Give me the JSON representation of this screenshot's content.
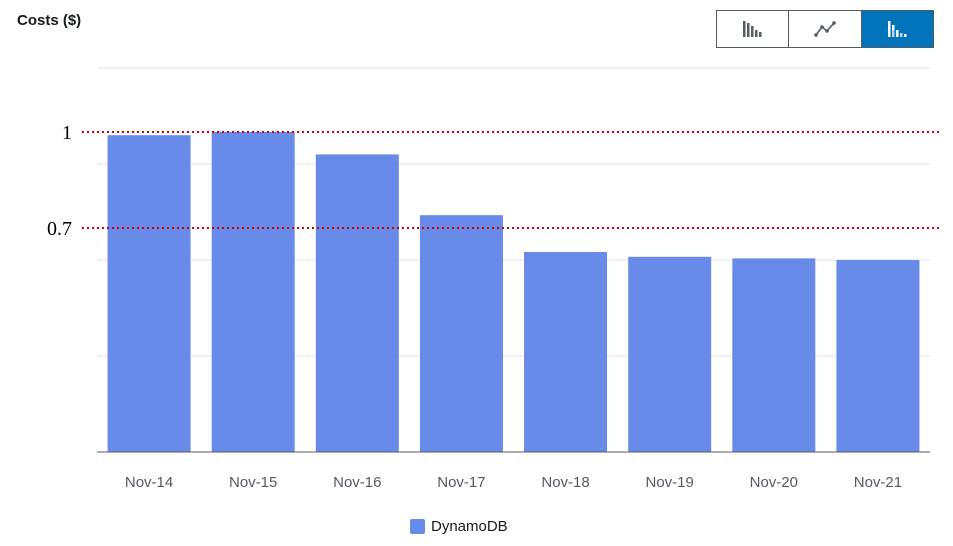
{
  "header": {
    "title": "Costs ($)"
  },
  "toolbar": {
    "buttons": [
      {
        "icon": "bar-chart-icon",
        "active": false
      },
      {
        "icon": "line-chart-icon",
        "active": false
      },
      {
        "icon": "stacked-bar-chart-icon",
        "active": true
      }
    ],
    "active_color": "#0073bb"
  },
  "chart_data": {
    "type": "bar",
    "categories": [
      "Nov-14",
      "Nov-15",
      "Nov-16",
      "Nov-17",
      "Nov-18",
      "Nov-19",
      "Nov-20",
      "Nov-21"
    ],
    "series": [
      {
        "name": "DynamoDB",
        "color": "#688ae8",
        "values": [
          0.99,
          1.0,
          0.93,
          0.74,
          0.625,
          0.61,
          0.605,
          0.6
        ]
      }
    ],
    "ylim": [
      0,
      1.2
    ],
    "grid": true,
    "reference_lines": [
      {
        "value": 1,
        "label": "1",
        "color": "#cc0000"
      },
      {
        "value": 0.7,
        "label": "0.7",
        "color": "#cc0000"
      }
    ],
    "legend": "bottom-center"
  }
}
